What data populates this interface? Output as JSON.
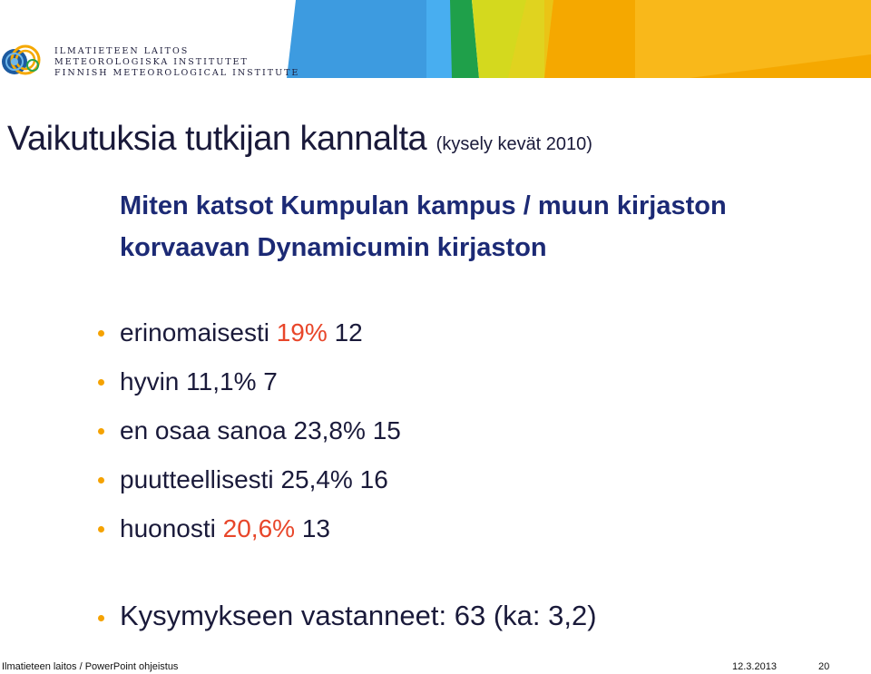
{
  "header": {
    "org_lines": [
      "ILMATIETEEN LAITOS",
      "METEOROLOGISKA INSTITUTET",
      "FINNISH METEOROLOGICAL INSTITUTE"
    ],
    "logo_icon": "fmi-logo-icon",
    "banner_colors": [
      "#3d9be0",
      "#2ba44a",
      "#d4d91e",
      "#f5a800",
      "#f9c12e"
    ]
  },
  "slide": {
    "title": "Vaikutuksia tutkijan kannalta",
    "title_note": "(kysely kevät 2010)",
    "question_lines": [
      "Miten katsot Kumpulan kampus / muun kirjaston",
      "korvaavan Dynamicumin kirjaston"
    ],
    "responses": [
      {
        "label": "erinomaisesti",
        "percent": "19%",
        "count": "12",
        "highlight": true
      },
      {
        "label": "hyvin",
        "percent": "11,1%",
        "count": "7",
        "highlight": false
      },
      {
        "label": "en osaa sanoa",
        "percent": "23,8%",
        "count": "15",
        "highlight": false
      },
      {
        "label": "puutteellisesti",
        "percent": "25,4%",
        "count": "16",
        "highlight": false
      },
      {
        "label": "huonosti",
        "percent": "20,6%",
        "count": "13",
        "highlight": true
      }
    ],
    "summary": "Kysymykseen vastanneet: 63 (ka: 3,2)",
    "bullet_color": "#f5a200",
    "highlight_color": "#e8462a",
    "question_color": "#1c2a75"
  },
  "footer": {
    "left": "Ilmatieteen laitos / PowerPoint ohjeistus",
    "date": "12.3.2013",
    "page": "20"
  }
}
